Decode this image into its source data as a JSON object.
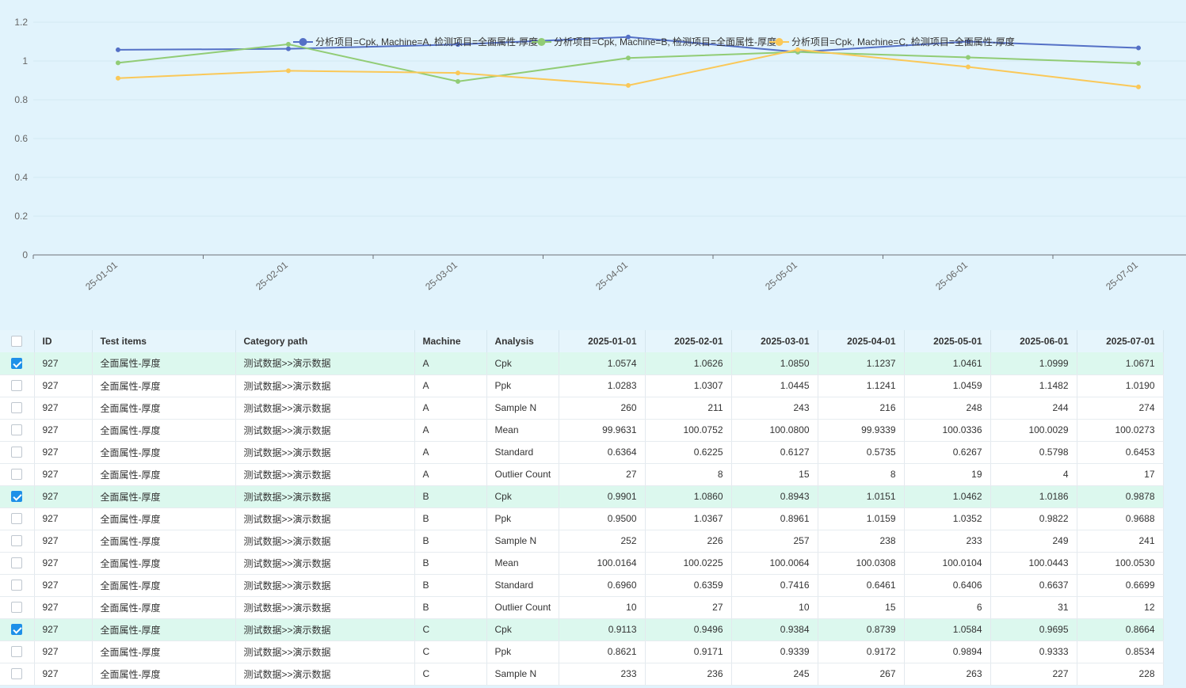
{
  "chart_data": {
    "type": "line",
    "x": [
      "2025-01-01",
      "2025-02-01",
      "2025-03-01",
      "2025-04-01",
      "2025-05-01",
      "2025-06-01",
      "2025-07-01"
    ],
    "x_tick_labels_visible": [
      "25-01-01",
      "25-02-01",
      "25-03-01",
      "25-04-01",
      "25-05-01",
      "25-06-01",
      "25-07-01"
    ],
    "y_ticks": [
      "0",
      "0.2",
      "0.4",
      "0.6",
      "0.8",
      "1",
      "1.2"
    ],
    "ylim": [
      0,
      1.2
    ],
    "grid": true,
    "legend_position": "top",
    "series": [
      {
        "name": "分析项目=Cpk, Machine=A, 检测项目=全面属性-厚度",
        "color": "#5470c6",
        "values": [
          1.0574,
          1.0626,
          1.085,
          1.1237,
          1.0461,
          1.0999,
          1.0671
        ]
      },
      {
        "name": "分析项目=Cpk, Machine=B, 检测项目=全面属性-厚度",
        "color": "#91cc75",
        "values": [
          0.9901,
          1.086,
          0.8943,
          1.0151,
          1.0462,
          1.0186,
          0.9878
        ]
      },
      {
        "name": "分析项目=Cpk, Machine=C, 检测项目=全面属性-厚度",
        "color": "#fac858",
        "values": [
          0.9113,
          0.9496,
          0.9384,
          0.8739,
          1.0584,
          0.9695,
          0.8664
        ]
      }
    ]
  },
  "table": {
    "headers": [
      "ID",
      "Test items",
      "Category path",
      "Machine",
      "Analysis",
      "2025-01-01",
      "2025-02-01",
      "2025-03-01",
      "2025-04-01",
      "2025-05-01",
      "2025-06-01",
      "2025-07-01"
    ],
    "rows": [
      {
        "checked": true,
        "cells": [
          "927",
          "全面属性-厚度",
          "测试数据>>演示数据",
          "A",
          "Cpk",
          "1.0574",
          "1.0626",
          "1.0850",
          "1.1237",
          "1.0461",
          "1.0999",
          "1.0671"
        ]
      },
      {
        "checked": false,
        "cells": [
          "927",
          "全面属性-厚度",
          "测试数据>>演示数据",
          "A",
          "Ppk",
          "1.0283",
          "1.0307",
          "1.0445",
          "1.1241",
          "1.0459",
          "1.1482",
          "1.0190"
        ]
      },
      {
        "checked": false,
        "cells": [
          "927",
          "全面属性-厚度",
          "测试数据>>演示数据",
          "A",
          "Sample N",
          "260",
          "211",
          "243",
          "216",
          "248",
          "244",
          "274"
        ]
      },
      {
        "checked": false,
        "cells": [
          "927",
          "全面属性-厚度",
          "测试数据>>演示数据",
          "A",
          "Mean",
          "99.9631",
          "100.0752",
          "100.0800",
          "99.9339",
          "100.0336",
          "100.0029",
          "100.0273"
        ]
      },
      {
        "checked": false,
        "cells": [
          "927",
          "全面属性-厚度",
          "测试数据>>演示数据",
          "A",
          "Standard",
          "0.6364",
          "0.6225",
          "0.6127",
          "0.5735",
          "0.6267",
          "0.5798",
          "0.6453"
        ]
      },
      {
        "checked": false,
        "cells": [
          "927",
          "全面属性-厚度",
          "测试数据>>演示数据",
          "A",
          "Outlier Count",
          "27",
          "8",
          "15",
          "8",
          "19",
          "4",
          "17"
        ]
      },
      {
        "checked": true,
        "cells": [
          "927",
          "全面属性-厚度",
          "测试数据>>演示数据",
          "B",
          "Cpk",
          "0.9901",
          "1.0860",
          "0.8943",
          "1.0151",
          "1.0462",
          "1.0186",
          "0.9878"
        ]
      },
      {
        "checked": false,
        "cells": [
          "927",
          "全面属性-厚度",
          "测试数据>>演示数据",
          "B",
          "Ppk",
          "0.9500",
          "1.0367",
          "0.8961",
          "1.0159",
          "1.0352",
          "0.9822",
          "0.9688"
        ]
      },
      {
        "checked": false,
        "cells": [
          "927",
          "全面属性-厚度",
          "测试数据>>演示数据",
          "B",
          "Sample N",
          "252",
          "226",
          "257",
          "238",
          "233",
          "249",
          "241"
        ]
      },
      {
        "checked": false,
        "cells": [
          "927",
          "全面属性-厚度",
          "测试数据>>演示数据",
          "B",
          "Mean",
          "100.0164",
          "100.0225",
          "100.0064",
          "100.0308",
          "100.0104",
          "100.0443",
          "100.0530"
        ]
      },
      {
        "checked": false,
        "cells": [
          "927",
          "全面属性-厚度",
          "测试数据>>演示数据",
          "B",
          "Standard",
          "0.6960",
          "0.6359",
          "0.7416",
          "0.6461",
          "0.6406",
          "0.6637",
          "0.6699"
        ]
      },
      {
        "checked": false,
        "cells": [
          "927",
          "全面属性-厚度",
          "测试数据>>演示数据",
          "B",
          "Outlier Count",
          "10",
          "27",
          "10",
          "15",
          "6",
          "31",
          "12"
        ]
      },
      {
        "checked": true,
        "cells": [
          "927",
          "全面属性-厚度",
          "测试数据>>演示数据",
          "C",
          "Cpk",
          "0.9113",
          "0.9496",
          "0.9384",
          "0.8739",
          "1.0584",
          "0.9695",
          "0.8664"
        ]
      },
      {
        "checked": false,
        "cells": [
          "927",
          "全面属性-厚度",
          "测试数据>>演示数据",
          "C",
          "Ppk",
          "0.8621",
          "0.9171",
          "0.9339",
          "0.9172",
          "0.9894",
          "0.9333",
          "0.8534"
        ]
      },
      {
        "checked": false,
        "cells": [
          "927",
          "全面属性-厚度",
          "测试数据>>演示数据",
          "C",
          "Sample N",
          "233",
          "236",
          "245",
          "267",
          "263",
          "227",
          "228"
        ]
      }
    ]
  },
  "colors": {
    "selected_row": "#dcf8ee",
    "checkbox_checked": "#1e90e8",
    "background": "#e1f3fc"
  }
}
